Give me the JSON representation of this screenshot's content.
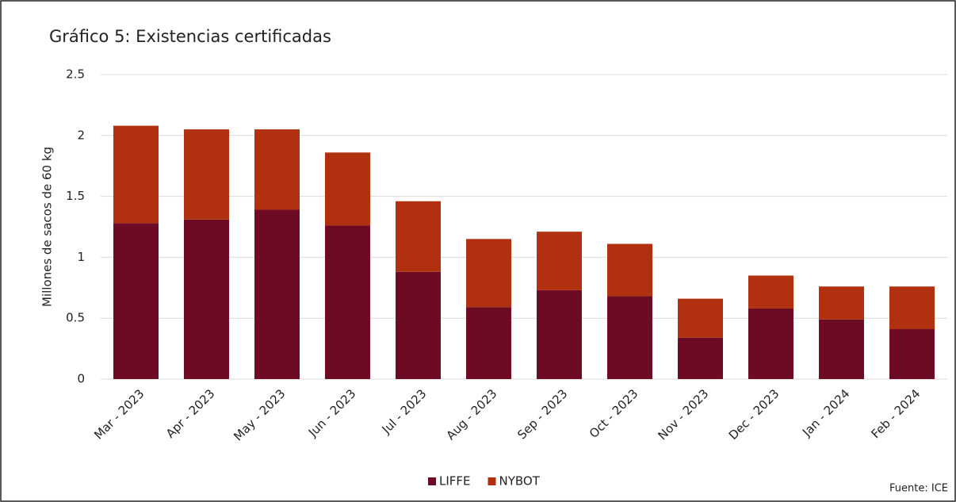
{
  "chart_data": {
    "type": "stacked_bar",
    "title": "Gráfico 5: Existencias certificadas",
    "y_label": "Millones de sacos de 60 kg",
    "source": "Fuente: ICE",
    "categories": [
      "Mar - 2023",
      "Apr - 2023",
      "May - 2023",
      "Jun - 2023",
      "Jul - 2023",
      "Aug - 2023",
      "Sep - 2023",
      "Oct - 2023",
      "Nov - 2023",
      "Dec - 2023",
      "Jan - 2024",
      "Feb - 2024"
    ],
    "series": [
      {
        "name": "LIFFE",
        "color": "#6d0b25",
        "values": [
          1.28,
          1.31,
          1.39,
          1.26,
          0.88,
          0.59,
          0.73,
          0.68,
          0.34,
          0.58,
          0.49,
          0.41
        ]
      },
      {
        "name": "NYBOT",
        "color": "#b0300f",
        "values": [
          0.8,
          0.74,
          0.66,
          0.6,
          0.58,
          0.56,
          0.48,
          0.43,
          0.32,
          0.27,
          0.27,
          0.35
        ]
      }
    ],
    "ylim": [
      0,
      2.5
    ],
    "yticks": [
      0,
      0.5,
      1,
      1.5,
      2,
      2.5
    ],
    "grid": true,
    "legend": "bottom"
  }
}
